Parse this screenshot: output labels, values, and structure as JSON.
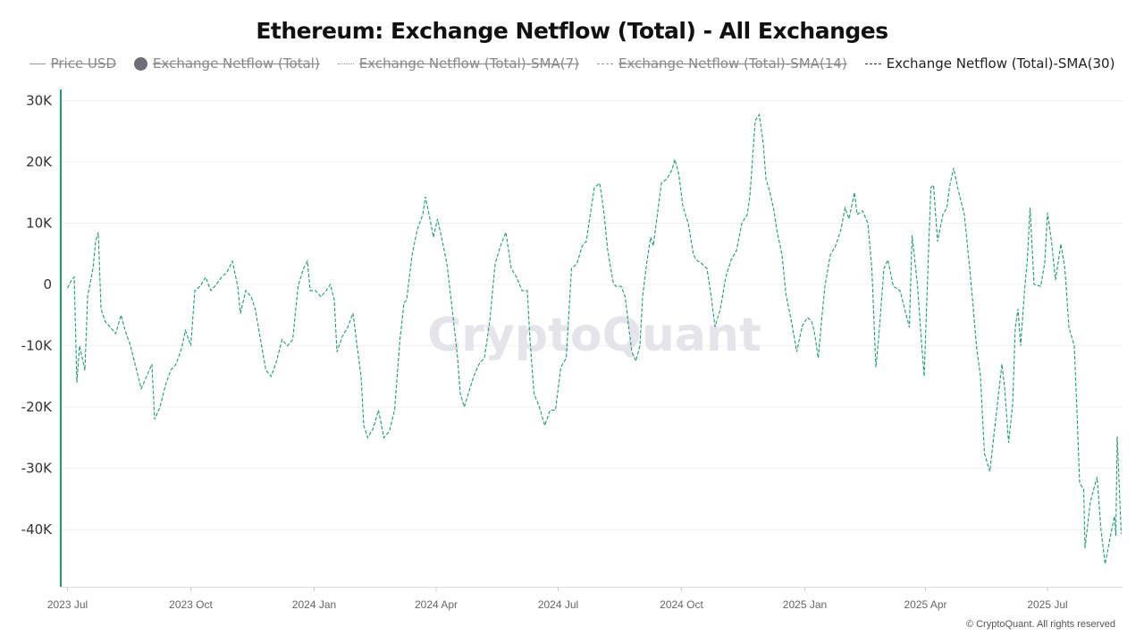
{
  "title": "Ethereum: Exchange Netflow (Total) - All Exchanges",
  "legend": [
    {
      "label": "Price USD",
      "active": false,
      "marker": "line"
    },
    {
      "label": "Exchange Netflow (Total)",
      "active": false,
      "marker": "dot"
    },
    {
      "label": "Exchange Netflow (Total)-SMA(7)",
      "active": false,
      "marker": "dotted"
    },
    {
      "label": "Exchange Netflow (Total)-SMA(14)",
      "active": false,
      "marker": "dashed"
    },
    {
      "label": "Exchange Netflow (Total)-SMA(30)",
      "active": true,
      "marker": "dashed"
    }
  ],
  "watermark": "CryptoQuant",
  "copyright": "© CryptoQuant. All rights reserved",
  "colors": {
    "line": "#1f9d6b",
    "axis": "#1f9d6b",
    "grid": "#f0f0f0"
  },
  "chart_data": {
    "type": "line",
    "title": "Ethereum: Exchange Netflow (Total) - All Exchanges",
    "xlabel": "",
    "ylabel": "",
    "xlim": [
      "2023-06-26",
      "2025-08-26"
    ],
    "ylim": [
      -49300,
      31800
    ],
    "grid": true,
    "legend_position": "top",
    "x_ticks": [
      {
        "date": "2023-07-01",
        "label": "2023 Jul"
      },
      {
        "date": "2023-10-01",
        "label": "2023 Oct"
      },
      {
        "date": "2024-01-01",
        "label": "2024 Jan"
      },
      {
        "date": "2024-04-01",
        "label": "2024 Apr"
      },
      {
        "date": "2024-07-01",
        "label": "2024 Jul"
      },
      {
        "date": "2024-10-01",
        "label": "2024 Oct"
      },
      {
        "date": "2025-01-01",
        "label": "2025 Jan"
      },
      {
        "date": "2025-04-01",
        "label": "2025 Apr"
      },
      {
        "date": "2025-07-01",
        "label": "2025 Jul"
      }
    ],
    "y_ticks": [
      {
        "value": 30000,
        "label": "30K"
      },
      {
        "value": 20000,
        "label": "20K"
      },
      {
        "value": 10000,
        "label": "10K"
      },
      {
        "value": 0,
        "label": "0"
      },
      {
        "value": -10000,
        "label": "-10K"
      },
      {
        "value": -20000,
        "label": "-20K"
      },
      {
        "value": -30000,
        "label": "-30K"
      },
      {
        "value": -40000,
        "label": "-40K"
      }
    ],
    "series": [
      {
        "name": "Exchange Netflow (Total)-SMA(30)",
        "points": [
          [
            "2023-07-01",
            -600
          ],
          [
            "2023-07-04",
            700
          ],
          [
            "2023-07-06",
            1200
          ],
          [
            "2023-07-08",
            -16000
          ],
          [
            "2023-07-10",
            -10000
          ],
          [
            "2023-07-14",
            -14000
          ],
          [
            "2023-07-16",
            -2000
          ],
          [
            "2023-07-20",
            2600
          ],
          [
            "2023-07-22",
            7000
          ],
          [
            "2023-07-24",
            8500
          ],
          [
            "2023-07-26",
            -4000
          ],
          [
            "2023-07-29",
            -6000
          ],
          [
            "2023-08-02",
            -7000
          ],
          [
            "2023-08-06",
            -8000
          ],
          [
            "2023-08-10",
            -5000
          ],
          [
            "2023-08-13",
            -7500
          ],
          [
            "2023-08-17",
            -10000
          ],
          [
            "2023-08-21",
            -13500
          ],
          [
            "2023-08-25",
            -17000
          ],
          [
            "2023-08-29",
            -15000
          ],
          [
            "2023-09-02",
            -13000
          ],
          [
            "2023-09-04",
            -22000
          ],
          [
            "2023-09-08",
            -20000
          ],
          [
            "2023-09-12",
            -16500
          ],
          [
            "2023-09-16",
            -14000
          ],
          [
            "2023-09-20",
            -13000
          ],
          [
            "2023-09-24",
            -10500
          ],
          [
            "2023-09-27",
            -7500
          ],
          [
            "2023-10-01",
            -10000
          ],
          [
            "2023-10-04",
            -1000
          ],
          [
            "2023-10-08",
            -300
          ],
          [
            "2023-10-12",
            1200
          ],
          [
            "2023-10-16",
            -1000
          ],
          [
            "2023-10-20",
            0
          ],
          [
            "2023-10-24",
            1200
          ],
          [
            "2023-10-28",
            2000
          ],
          [
            "2023-11-01",
            3800
          ],
          [
            "2023-11-05",
            -300
          ],
          [
            "2023-11-07",
            -4700
          ],
          [
            "2023-11-11",
            -1000
          ],
          [
            "2023-11-15",
            -2000
          ],
          [
            "2023-11-18",
            -4000
          ],
          [
            "2023-11-22",
            -9000
          ],
          [
            "2023-11-26",
            -14000
          ],
          [
            "2023-11-30",
            -15000
          ],
          [
            "2023-12-04",
            -12500
          ],
          [
            "2023-12-08",
            -9000
          ],
          [
            "2023-12-12",
            -10000
          ],
          [
            "2023-12-16",
            -9000
          ],
          [
            "2023-12-20",
            -300
          ],
          [
            "2023-12-24",
            2600
          ],
          [
            "2023-12-27",
            3800
          ],
          [
            "2023-12-29",
            -1000
          ],
          [
            "2024-01-02",
            -1000
          ],
          [
            "2024-01-06",
            -2000
          ],
          [
            "2024-01-10",
            -1000
          ],
          [
            "2024-01-13",
            0
          ],
          [
            "2024-01-16",
            -2500
          ],
          [
            "2024-01-18",
            -11000
          ],
          [
            "2024-01-22",
            -8500
          ],
          [
            "2024-01-26",
            -7000
          ],
          [
            "2024-01-30",
            -4700
          ],
          [
            "2024-02-02",
            -10000
          ],
          [
            "2024-02-05",
            -15000
          ],
          [
            "2024-02-07",
            -23000
          ],
          [
            "2024-02-10",
            -25000
          ],
          [
            "2024-02-14",
            -23500
          ],
          [
            "2024-02-18",
            -20500
          ],
          [
            "2024-02-22",
            -25000
          ],
          [
            "2024-02-26",
            -24000
          ],
          [
            "2024-03-01",
            -20500
          ],
          [
            "2024-03-05",
            -9000
          ],
          [
            "2024-03-08",
            -3000
          ],
          [
            "2024-03-10",
            -2500
          ],
          [
            "2024-03-14",
            4800
          ],
          [
            "2024-03-18",
            9000
          ],
          [
            "2024-03-22",
            11400
          ],
          [
            "2024-03-24",
            14300
          ],
          [
            "2024-03-28",
            10000
          ],
          [
            "2024-03-30",
            7700
          ],
          [
            "2024-04-02",
            10700
          ],
          [
            "2024-04-05",
            7700
          ],
          [
            "2024-04-09",
            3400
          ],
          [
            "2024-04-11",
            -300
          ],
          [
            "2024-04-14",
            -6000
          ],
          [
            "2024-04-17",
            -12000
          ],
          [
            "2024-04-19",
            -17800
          ],
          [
            "2024-04-22",
            -20000
          ],
          [
            "2024-04-25",
            -17800
          ],
          [
            "2024-04-29",
            -15000
          ],
          [
            "2024-05-03",
            -13000
          ],
          [
            "2024-05-07",
            -12000
          ],
          [
            "2024-05-11",
            -6000
          ],
          [
            "2024-05-15",
            3400
          ],
          [
            "2024-05-19",
            6300
          ],
          [
            "2024-05-23",
            8500
          ],
          [
            "2024-05-27",
            2600
          ],
          [
            "2024-05-31",
            1200
          ],
          [
            "2024-06-04",
            -1000
          ],
          [
            "2024-06-08",
            -1000
          ],
          [
            "2024-06-10",
            -9000
          ],
          [
            "2024-06-13",
            -17800
          ],
          [
            "2024-06-17",
            -20000
          ],
          [
            "2024-06-21",
            -23000
          ],
          [
            "2024-06-25",
            -20500
          ],
          [
            "2024-06-29",
            -20500
          ],
          [
            "2024-07-03",
            -13500
          ],
          [
            "2024-07-07",
            -12000
          ],
          [
            "2024-07-11",
            2600
          ],
          [
            "2024-07-15",
            3400
          ],
          [
            "2024-07-19",
            6300
          ],
          [
            "2024-07-22",
            7000
          ],
          [
            "2024-07-24",
            10000
          ],
          [
            "2024-07-28",
            15800
          ],
          [
            "2024-08-01",
            16500
          ],
          [
            "2024-08-04",
            12000
          ],
          [
            "2024-08-07",
            5500
          ],
          [
            "2024-08-11",
            400
          ],
          [
            "2024-08-13",
            -300
          ],
          [
            "2024-08-17",
            -300
          ],
          [
            "2024-08-20",
            -2000
          ],
          [
            "2024-08-23",
            -7600
          ],
          [
            "2024-08-25",
            -11000
          ],
          [
            "2024-08-28",
            -12500
          ],
          [
            "2024-08-31",
            -10000
          ],
          [
            "2024-09-02",
            -2000
          ],
          [
            "2024-09-05",
            3400
          ],
          [
            "2024-09-08",
            7700
          ],
          [
            "2024-09-10",
            6300
          ],
          [
            "2024-09-13",
            11400
          ],
          [
            "2024-09-16",
            16500
          ],
          [
            "2024-09-20",
            17200
          ],
          [
            "2024-09-24",
            18700
          ],
          [
            "2024-09-26",
            20400
          ],
          [
            "2024-09-29",
            18000
          ],
          [
            "2024-10-02",
            12800
          ],
          [
            "2024-10-06",
            10000
          ],
          [
            "2024-10-10",
            4800
          ],
          [
            "2024-10-12",
            4000
          ],
          [
            "2024-10-16",
            3400
          ],
          [
            "2024-10-20",
            2600
          ],
          [
            "2024-10-23",
            -1700
          ],
          [
            "2024-10-26",
            -6900
          ],
          [
            "2024-10-30",
            -4000
          ],
          [
            "2024-11-03",
            1200
          ],
          [
            "2024-11-07",
            4000
          ],
          [
            "2024-11-11",
            5500
          ],
          [
            "2024-11-15",
            10000
          ],
          [
            "2024-11-19",
            11400
          ],
          [
            "2024-11-21",
            14300
          ],
          [
            "2024-11-25",
            26700
          ],
          [
            "2024-11-28",
            27700
          ],
          [
            "2024-12-01",
            23000
          ],
          [
            "2024-12-03",
            17200
          ],
          [
            "2024-12-06",
            15000
          ],
          [
            "2024-12-09",
            12000
          ],
          [
            "2024-12-11",
            9000
          ],
          [
            "2024-12-15",
            4800
          ],
          [
            "2024-12-18",
            -1700
          ],
          [
            "2024-12-22",
            -6000
          ],
          [
            "2024-12-26",
            -11000
          ],
          [
            "2024-12-30",
            -6800
          ],
          [
            "2025-01-03",
            -5400
          ],
          [
            "2025-01-06",
            -6000
          ],
          [
            "2025-01-08",
            -7600
          ],
          [
            "2025-01-11",
            -12000
          ],
          [
            "2025-01-14",
            -4700
          ],
          [
            "2025-01-16",
            -300
          ],
          [
            "2025-01-20",
            4800
          ],
          [
            "2025-01-24",
            6300
          ],
          [
            "2025-01-28",
            9000
          ],
          [
            "2025-01-31",
            12500
          ],
          [
            "2025-02-03",
            10700
          ],
          [
            "2025-02-07",
            15000
          ],
          [
            "2025-02-09",
            11400
          ],
          [
            "2025-02-13",
            12000
          ],
          [
            "2025-02-17",
            10000
          ],
          [
            "2025-02-20",
            2600
          ],
          [
            "2025-02-23",
            -13500
          ],
          [
            "2025-02-25",
            -9000
          ],
          [
            "2025-03-01",
            2600
          ],
          [
            "2025-03-04",
            4000
          ],
          [
            "2025-03-08",
            -300
          ],
          [
            "2025-03-13",
            -1000
          ],
          [
            "2025-03-20",
            -7000
          ],
          [
            "2025-03-22",
            8000
          ],
          [
            "2025-03-26",
            0
          ],
          [
            "2025-03-29",
            -9300
          ],
          [
            "2025-03-31",
            -15000
          ],
          [
            "2025-04-05",
            15800
          ],
          [
            "2025-04-07",
            16200
          ],
          [
            "2025-04-10",
            7000
          ],
          [
            "2025-04-14",
            11400
          ],
          [
            "2025-04-17",
            12500
          ],
          [
            "2025-04-19",
            16000
          ],
          [
            "2025-04-22",
            19000
          ],
          [
            "2025-04-25",
            15800
          ],
          [
            "2025-04-30",
            11400
          ],
          [
            "2025-05-04",
            2600
          ],
          [
            "2025-05-06",
            -2200
          ],
          [
            "2025-05-09",
            -10000
          ],
          [
            "2025-05-12",
            -15000
          ],
          [
            "2025-05-15",
            -27600
          ],
          [
            "2025-05-19",
            -30500
          ],
          [
            "2025-05-22",
            -24700
          ],
          [
            "2025-05-28",
            -13000
          ],
          [
            "2025-05-30",
            -16800
          ],
          [
            "2025-06-02",
            -25800
          ],
          [
            "2025-06-05",
            -19600
          ],
          [
            "2025-06-07",
            -7000
          ],
          [
            "2025-06-09",
            -4000
          ],
          [
            "2025-06-11",
            -10000
          ],
          [
            "2025-06-14",
            -700
          ],
          [
            "2025-06-16",
            4000
          ],
          [
            "2025-06-18",
            12500
          ],
          [
            "2025-06-21",
            0
          ],
          [
            "2025-06-26",
            -300
          ],
          [
            "2025-06-29",
            3600
          ],
          [
            "2025-07-01",
            11700
          ],
          [
            "2025-07-04",
            7000
          ],
          [
            "2025-07-07",
            700
          ],
          [
            "2025-07-11",
            6600
          ],
          [
            "2025-07-14",
            2600
          ],
          [
            "2025-07-17",
            -7000
          ],
          [
            "2025-07-21",
            -10000
          ],
          [
            "2025-07-23",
            -20700
          ],
          [
            "2025-07-25",
            -32400
          ],
          [
            "2025-07-28",
            -33400
          ],
          [
            "2025-07-29",
            -43000
          ],
          [
            "2025-08-02",
            -35400
          ],
          [
            "2025-08-07",
            -31400
          ],
          [
            "2025-08-10",
            -40200
          ],
          [
            "2025-08-13",
            -45600
          ],
          [
            "2025-08-17",
            -41000
          ],
          [
            "2025-08-20",
            -37800
          ],
          [
            "2025-08-21",
            -41000
          ],
          [
            "2025-08-22",
            -24800
          ],
          [
            "2025-08-25",
            -40700
          ]
        ]
      }
    ]
  }
}
